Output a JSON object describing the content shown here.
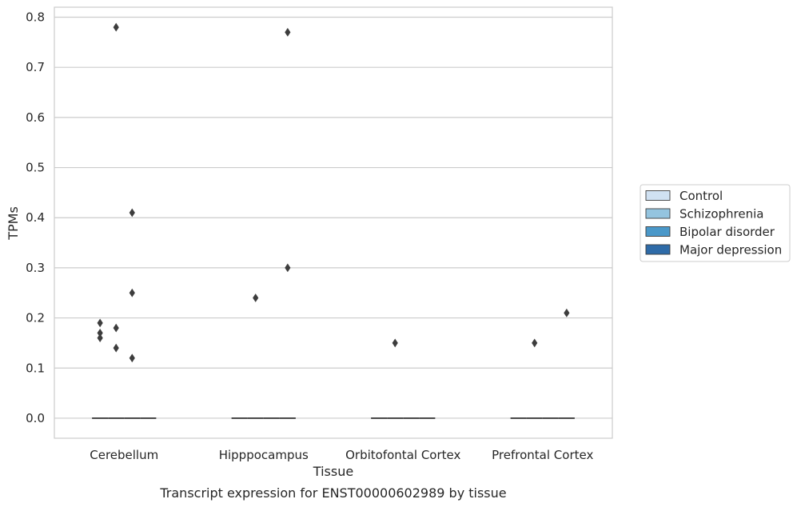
{
  "chart_data": {
    "type": "box",
    "xlabel": "Tissue",
    "ylabel": "TPMs",
    "caption": "Transcript expression for ENST00000602989 by tissue",
    "categories": [
      "Cerebellum",
      "Hipppocampus",
      "Orbitofontal Cortex",
      "Prefrontal Cortex"
    ],
    "ylim": [
      -0.04,
      0.82
    ],
    "yticks": [
      "0.0",
      "0.1",
      "0.2",
      "0.3",
      "0.4",
      "0.5",
      "0.6",
      "0.7",
      "0.8"
    ],
    "grid": true,
    "legend_position": "right",
    "series": [
      {
        "name": "Control",
        "color": "#d0e1f2",
        "median": [
          0,
          0,
          0,
          0
        ],
        "outliers": [
          [
            0.19,
            0.17,
            0.16
          ],
          [],
          [],
          []
        ]
      },
      {
        "name": "Schizophrenia",
        "color": "#94c4df",
        "median": [
          0,
          0,
          0,
          0
        ],
        "outliers": [
          [
            0.78,
            0.18,
            0.14
          ],
          [
            0.24
          ],
          [
            0.15
          ],
          [
            0.15
          ]
        ]
      },
      {
        "name": "Bipolar disorder",
        "color": "#4a98c9",
        "median": [
          0,
          0,
          0,
          0
        ],
        "outliers": [
          [
            0.41,
            0.25,
            0.12
          ],
          [],
          [],
          []
        ]
      },
      {
        "name": "Major depression",
        "color": "#2e6ba8",
        "median": [
          0,
          0,
          0,
          0
        ],
        "outliers": [
          [],
          [
            0.77,
            0.3
          ],
          [],
          [
            0.21
          ]
        ]
      }
    ]
  }
}
